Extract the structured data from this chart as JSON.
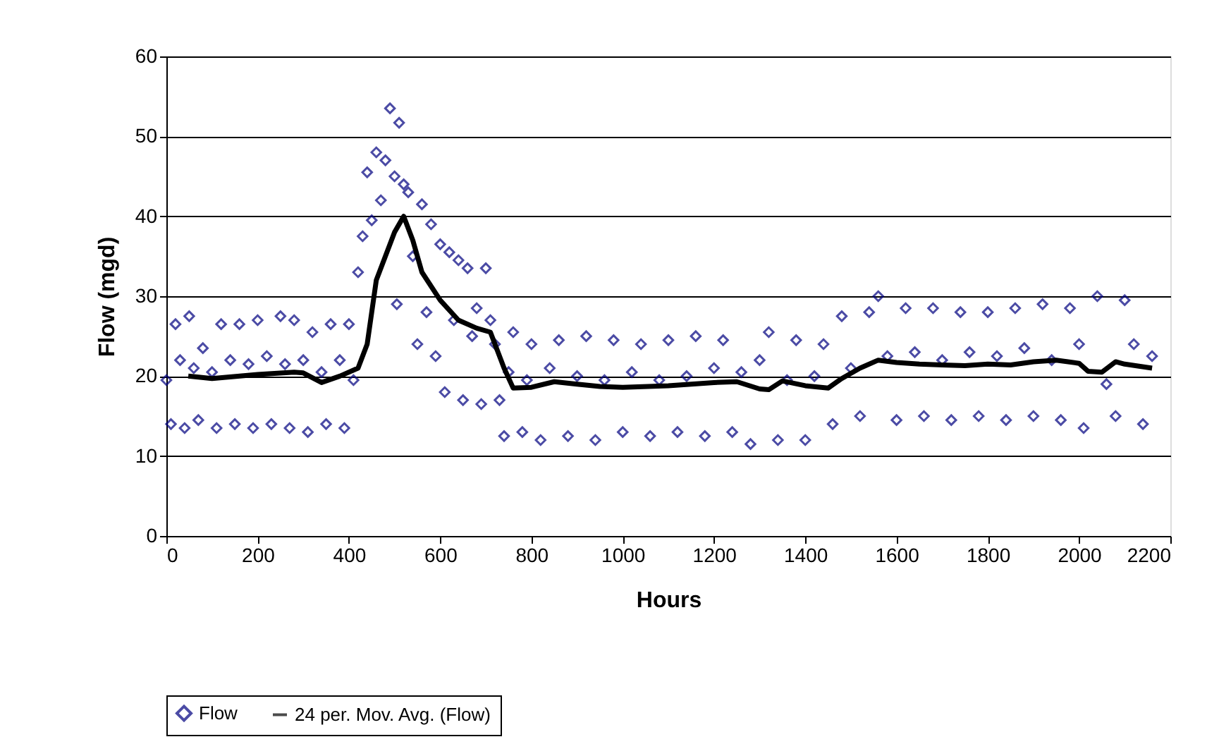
{
  "chart_data": {
    "type": "scatter",
    "xlabel": "Hours",
    "ylabel": "Flow (mgd)",
    "xlim": [
      0,
      2200
    ],
    "xticks": [
      0,
      200,
      400,
      600,
      800,
      1000,
      1200,
      1400,
      1600,
      1800,
      2000,
      2200
    ],
    "ylim": [
      0,
      60
    ],
    "yticks": [
      0,
      10,
      20,
      30,
      40,
      50,
      60
    ],
    "grid": "y",
    "legend": "bottom",
    "series": [
      {
        "name": "Flow",
        "marker": "diamond",
        "color": "#000080",
        "x": [
          0,
          10,
          20,
          30,
          40,
          50,
          60,
          70,
          80,
          100,
          110,
          120,
          140,
          150,
          160,
          180,
          190,
          200,
          220,
          230,
          250,
          260,
          270,
          280,
          300,
          310,
          320,
          340,
          350,
          360,
          380,
          390,
          400,
          410,
          420,
          430,
          440,
          450,
          460,
          470,
          480,
          490,
          500,
          505,
          510,
          520,
          530,
          540,
          550,
          560,
          570,
          580,
          590,
          600,
          610,
          620,
          630,
          640,
          650,
          660,
          670,
          680,
          690,
          700,
          710,
          720,
          730,
          740,
          750,
          760,
          780,
          790,
          800,
          820,
          840,
          860,
          880,
          900,
          920,
          940,
          960,
          980,
          1000,
          1020,
          1040,
          1060,
          1080,
          1100,
          1120,
          1140,
          1160,
          1180,
          1200,
          1220,
          1240,
          1260,
          1280,
          1300,
          1320,
          1340,
          1360,
          1380,
          1400,
          1420,
          1440,
          1460,
          1480,
          1500,
          1520,
          1540,
          1560,
          1580,
          1600,
          1620,
          1640,
          1660,
          1680,
          1700,
          1720,
          1740,
          1760,
          1780,
          1800,
          1820,
          1840,
          1860,
          1880,
          1900,
          1920,
          1940,
          1960,
          1980,
          2000,
          2010,
          2040,
          2060,
          2080,
          2100,
          2120,
          2140,
          2160
        ],
        "values": [
          19.5,
          14,
          26.5,
          22,
          13.5,
          27.5,
          21,
          14.5,
          23.5,
          20.5,
          13.5,
          26.5,
          22,
          14,
          26.5,
          21.5,
          13.5,
          27,
          22.5,
          14,
          27.5,
          21.5,
          13.5,
          27,
          22,
          13,
          25.5,
          20.5,
          14,
          26.5,
          22,
          13.5,
          26.5,
          19.5,
          33,
          37.5,
          45.5,
          39.5,
          48,
          42,
          47,
          53.5,
          45,
          29,
          51.7,
          44,
          43,
          35,
          24,
          41.5,
          28,
          39,
          22.5,
          36.5,
          18,
          35.5,
          27,
          34.5,
          17,
          33.5,
          25,
          28.5,
          16.5,
          33.5,
          27,
          24,
          17,
          12.5,
          20.5,
          25.5,
          13,
          19.5,
          24,
          12,
          21,
          24.5,
          12.5,
          20,
          25,
          12,
          19.5,
          24.5,
          13,
          20.5,
          24,
          12.5,
          19.5,
          24.5,
          13,
          20,
          25,
          12.5,
          21,
          24.5,
          13,
          20.5,
          11.5,
          22,
          25.5,
          12,
          19.5,
          24.5,
          12,
          20,
          24,
          14,
          27.5,
          21,
          15,
          28,
          30,
          22.5,
          14.5,
          28.5,
          23,
          15,
          28.5,
          22,
          14.5,
          28,
          23,
          15,
          28,
          22.5,
          14.5,
          28.5,
          23.5,
          15,
          29,
          22,
          14.5,
          28.5,
          24,
          13.5,
          30,
          19,
          15,
          29.5,
          24,
          14,
          22.5
        ]
      },
      {
        "name": "24 per. Mov. Avg. (Flow)",
        "type": "line",
        "line_style": "solid",
        "color": "#000000",
        "x": [
          48,
          100,
          200,
          280,
          300,
          340,
          380,
          420,
          440,
          460,
          480,
          500,
          520,
          540,
          560,
          600,
          640,
          680,
          710,
          740,
          760,
          800,
          850,
          900,
          950,
          1000,
          1100,
          1200,
          1250,
          1300,
          1320,
          1350,
          1400,
          1450,
          1480,
          1520,
          1560,
          1600,
          1650,
          1700,
          1750,
          1800,
          1850,
          1900,
          1950,
          2000,
          2020,
          2050,
          2080,
          2100,
          2160
        ],
        "values": [
          20,
          19.7,
          20.2,
          20.5,
          20.4,
          19.2,
          20,
          21,
          24,
          32,
          35,
          38,
          40,
          37,
          33,
          29.5,
          27,
          26,
          25.5,
          21,
          18.5,
          18.6,
          19.3,
          19,
          18.7,
          18.6,
          18.8,
          19.2,
          19.3,
          18.4,
          18.3,
          19.4,
          18.8,
          18.5,
          19.7,
          21,
          22,
          21.7,
          21.5,
          21.4,
          21.3,
          21.5,
          21.4,
          21.8,
          22,
          21.6,
          20.6,
          20.5,
          21.8,
          21.5,
          21
        ]
      }
    ]
  }
}
